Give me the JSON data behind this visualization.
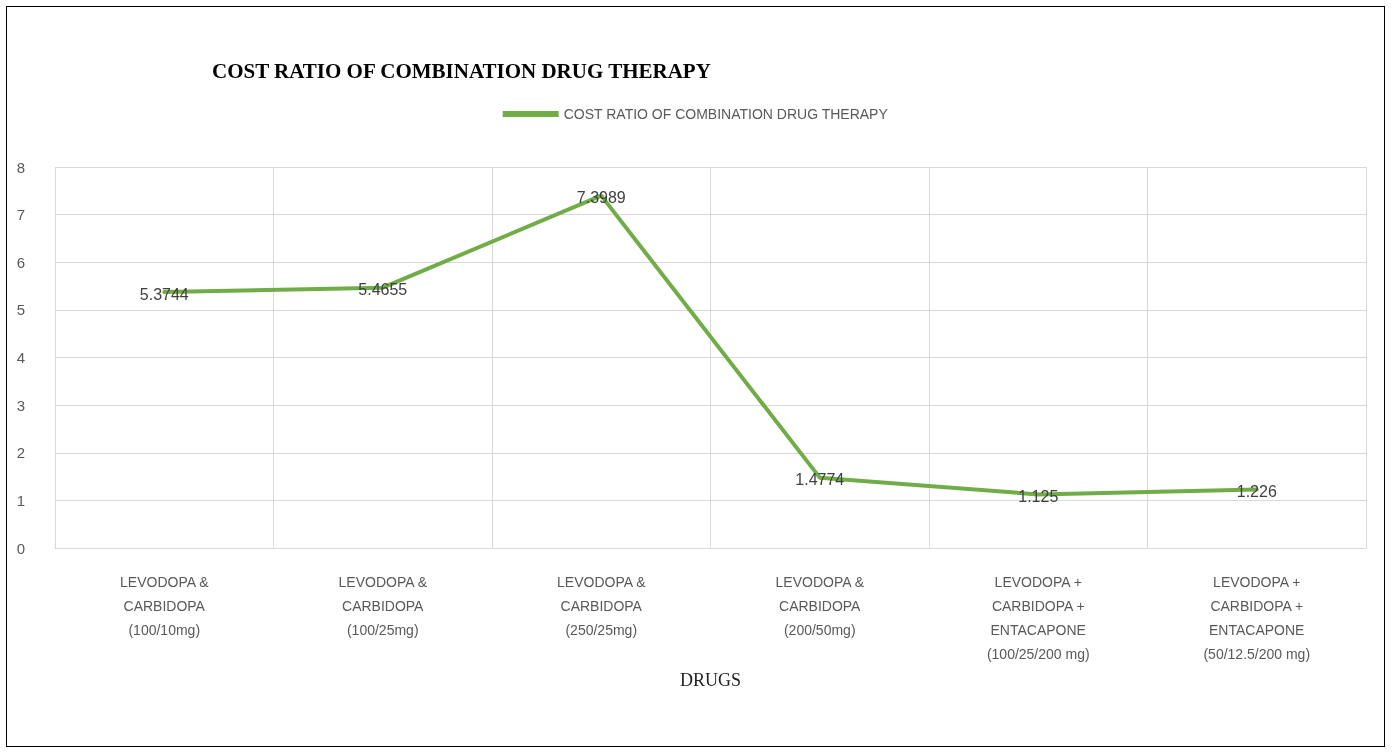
{
  "chart_data": {
    "type": "line",
    "title": "COST RATIO OF COMBINATION DRUG THERAPY",
    "xlabel": "DRUGS",
    "categories": [
      "LEVODOPA &\nCARBIDOPA\n(100/10mg)",
      "LEVODOPA &\nCARBIDOPA\n(100/25mg)",
      "LEVODOPA &\nCARBIDOPA\n(250/25mg)",
      "LEVODOPA &\nCARBIDOPA\n(200/50mg)",
      "LEVODOPA +\nCARBIDOPA +\nENTACAPONE\n(100/25/200 mg)",
      "LEVODOPA +\nCARBIDOPA +\nENTACAPONE\n(50/12.5/200 mg)"
    ],
    "series": [
      {
        "name": "COST RATIO OF COMBINATION DRUG THERAPY",
        "color": "#70ad47",
        "values": [
          5.3744,
          5.4655,
          7.3989,
          1.4774,
          1.125,
          1.226
        ]
      }
    ],
    "ylim": [
      0,
      8
    ],
    "yticks": [
      0,
      1,
      2,
      3,
      4,
      5,
      6,
      7,
      8
    ],
    "grid": true,
    "legend": "top",
    "data_labels": true,
    "marker": "none",
    "line_style": "solid"
  }
}
